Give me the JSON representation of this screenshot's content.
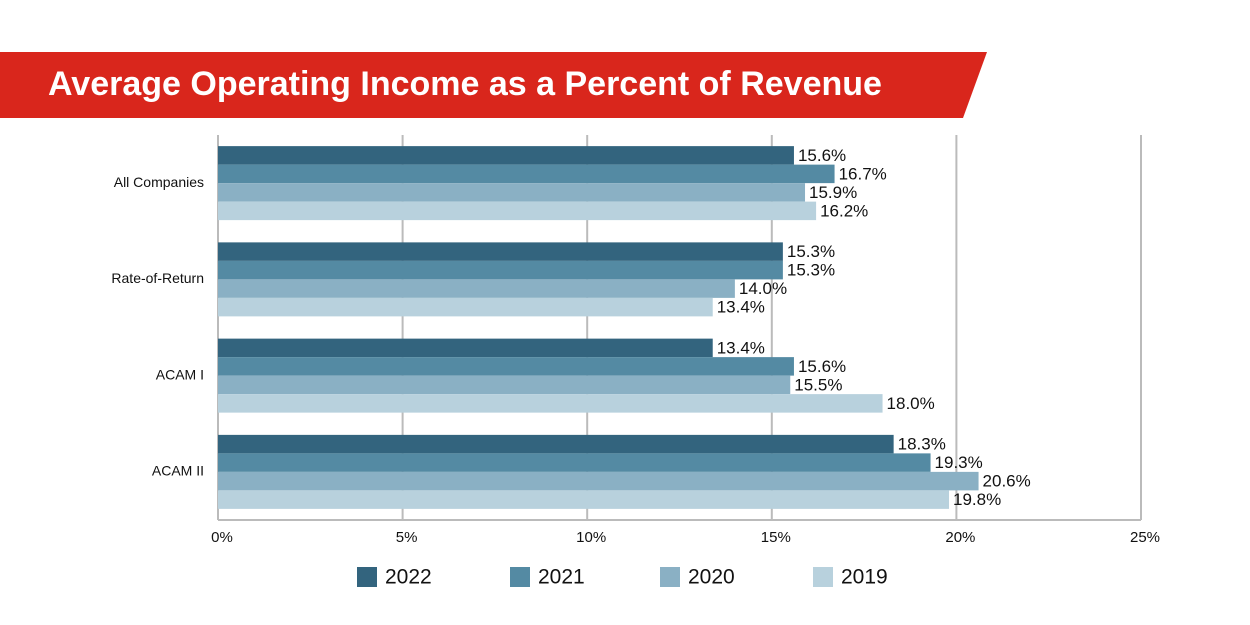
{
  "chart_data": {
    "type": "bar",
    "orientation": "horizontal",
    "title": "Average Operating Income as a Percent of Revenue",
    "categories": [
      "All Companies",
      "Rate-of-Return",
      "ACAM I",
      "ACAM II"
    ],
    "series": [
      {
        "name": "2022",
        "color": "#33647e",
        "values": [
          15.6,
          15.3,
          13.4,
          18.3
        ],
        "value_labels": [
          "15.6%",
          "15.3%",
          "13.4%",
          "18.3%"
        ]
      },
      {
        "name": "2021",
        "color": "#548aa3",
        "values": [
          16.7,
          15.3,
          15.6,
          19.3
        ],
        "value_labels": [
          "16.7%",
          "15.3%",
          "15.6%",
          "19.3%"
        ]
      },
      {
        "name": "2020",
        "color": "#8ab0c4",
        "values": [
          15.9,
          14.0,
          15.5,
          20.6
        ],
        "value_labels": [
          "15.9%",
          "14.0%",
          "15.5%",
          "20.6%"
        ]
      },
      {
        "name": "2019",
        "color": "#b8d1dd",
        "values": [
          16.2,
          13.4,
          18.0,
          19.8
        ],
        "value_labels": [
          "16.2%",
          "13.4%",
          "18.0%",
          "19.8%"
        ]
      }
    ],
    "xlim": [
      0,
      25
    ],
    "xticks": [
      {
        "value": 0,
        "label": "0%"
      },
      {
        "value": 5,
        "label": "5%"
      },
      {
        "value": 10,
        "label": "10%"
      },
      {
        "value": 15,
        "label": "15%"
      },
      {
        "value": 20,
        "label": "20%"
      },
      {
        "value": 25,
        "label": "25%"
      }
    ],
    "grid": true,
    "legend": "bottom"
  }
}
